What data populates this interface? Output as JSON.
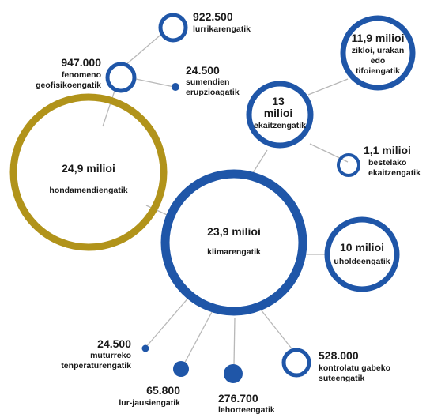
{
  "colors": {
    "blue": "#1f56a8",
    "gold": "#b1931a",
    "line": "#b8b8b8",
    "text": "#1a1a1a"
  },
  "nodes": {
    "hondamendiak": {
      "value": "24,9 milioi",
      "label": "hondamendiengatik"
    },
    "klima": {
      "value": "23,9 milioi",
      "label": "klimarengatik"
    },
    "ekaitzak": {
      "value_1": "13",
      "value_2": "milioi",
      "label": "ekaitzengatik"
    },
    "zikloi": {
      "value": "11,9 milioi",
      "label_1": "zikloi, urakan",
      "label_2": "edo",
      "label_3": "tifoiengatik"
    },
    "bestelako": {
      "value": "1,1 milioi",
      "label_1": "bestelako",
      "label_2": "ekaitzengatik"
    },
    "uholdeak": {
      "value": "10 milioi",
      "label": "uholdeengatik"
    },
    "lurrikarak": {
      "value": "922.500",
      "label": "lurrikarengatik"
    },
    "geofisikoak": {
      "value": "947.000",
      "label_1": "fenomeno",
      "label_2": "geofisikoengatik"
    },
    "sumendiak": {
      "value": "24.500",
      "label_1": "sumendien",
      "label_2": "erupzioagatik"
    },
    "muturreko": {
      "value": "24.500",
      "label_1": "muturreko",
      "label_2": "tenperaturengatik"
    },
    "lurjausiak": {
      "value": "65.800",
      "label": "lur-jausiengatik"
    },
    "lehorteak": {
      "value": "276.700",
      "label": "lehorteengatik"
    },
    "suteak": {
      "value": "528.000",
      "label_1": "kontrolatu gabeko",
      "label_2": "suteengatik"
    }
  }
}
